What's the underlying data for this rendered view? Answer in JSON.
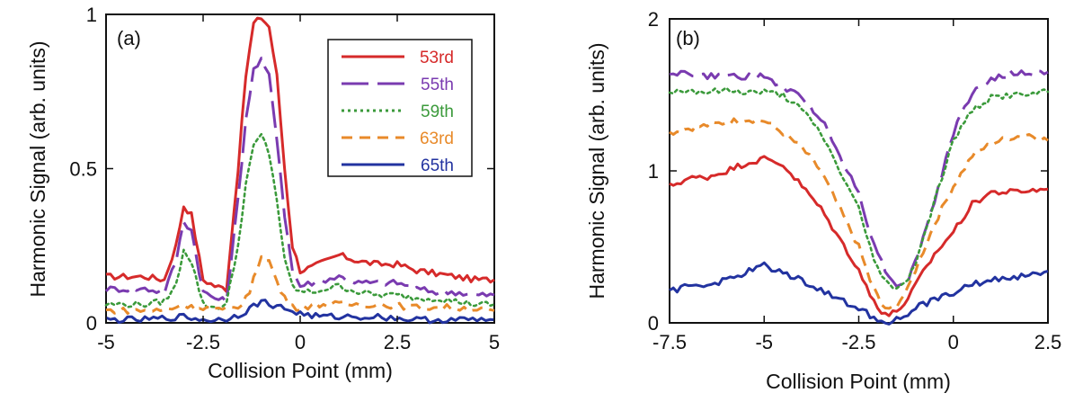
{
  "chart_data": [
    {
      "type": "line",
      "panel_label": "(a)",
      "xlabel": "Collision Point (mm)",
      "ylabel": "Harmonic Signal (arb. units)",
      "xlim": [
        -5,
        5
      ],
      "ylim": [
        0,
        1
      ],
      "xticks": [
        -5,
        -2.5,
        0,
        2.5,
        5
      ],
      "xtick_labels": [
        "-5",
        "-2.5",
        "0",
        "2.5",
        "5"
      ],
      "yticks": [
        0,
        0.5,
        1
      ],
      "ytick_labels": [
        "0",
        "0.5",
        "1"
      ],
      "grid": false,
      "legend": "top-right",
      "series": [
        {
          "name": "53rd",
          "color": "#d62a2a",
          "dash": "solid",
          "x": [
            -5,
            -4,
            -3.5,
            -3.2,
            -3.0,
            -2.8,
            -2.5,
            -2.2,
            -1.9,
            -1.6,
            -1.4,
            -1.2,
            -1.0,
            -0.8,
            -0.6,
            -0.4,
            -0.2,
            0,
            0.3,
            1,
            1.5,
            2,
            2.5,
            3,
            3.5,
            4,
            4.5,
            5
          ],
          "y": [
            0.15,
            0.15,
            0.14,
            0.25,
            0.38,
            0.35,
            0.14,
            0.12,
            0.11,
            0.5,
            0.8,
            0.97,
            0.99,
            0.96,
            0.8,
            0.5,
            0.25,
            0.17,
            0.18,
            0.22,
            0.2,
            0.19,
            0.19,
            0.17,
            0.16,
            0.15,
            0.14,
            0.14
          ]
        },
        {
          "name": "55th",
          "color": "#7a3bb0",
          "dash": "long-dash",
          "x": [
            -5,
            -4,
            -3.5,
            -3.2,
            -3.0,
            -2.8,
            -2.5,
            -2.2,
            -1.9,
            -1.6,
            -1.4,
            -1.2,
            -1.0,
            -0.8,
            -0.6,
            -0.4,
            -0.2,
            0,
            0.3,
            1,
            1.5,
            2,
            2.5,
            3,
            3.5,
            4,
            4.5,
            5
          ],
          "y": [
            0.11,
            0.11,
            0.1,
            0.2,
            0.33,
            0.3,
            0.1,
            0.08,
            0.07,
            0.4,
            0.66,
            0.82,
            0.85,
            0.8,
            0.6,
            0.35,
            0.17,
            0.12,
            0.13,
            0.15,
            0.13,
            0.13,
            0.13,
            0.11,
            0.1,
            0.1,
            0.09,
            0.09
          ]
        },
        {
          "name": "59th",
          "color": "#3b9a3b",
          "dash": "dotted",
          "x": [
            -5,
            -4,
            -3.5,
            -3.2,
            -3.0,
            -2.8,
            -2.5,
            -2.2,
            -1.9,
            -1.6,
            -1.4,
            -1.2,
            -1.0,
            -0.8,
            -0.6,
            -0.4,
            -0.2,
            0,
            0.3,
            1,
            1.5,
            2,
            2.5,
            3,
            3.5,
            4,
            4.5,
            5
          ],
          "y": [
            0.06,
            0.06,
            0.07,
            0.12,
            0.24,
            0.2,
            0.06,
            0.05,
            0.06,
            0.25,
            0.45,
            0.57,
            0.61,
            0.55,
            0.4,
            0.2,
            0.12,
            0.1,
            0.1,
            0.12,
            0.1,
            0.09,
            0.09,
            0.08,
            0.08,
            0.07,
            0.06,
            0.06
          ]
        },
        {
          "name": "63rd",
          "color": "#e88a2a",
          "dash": "dashed",
          "x": [
            -5,
            -4,
            -3.5,
            -3.0,
            -2.8,
            -2.5,
            -2.0,
            -1.6,
            -1.3,
            -1.0,
            -0.8,
            -0.5,
            -0.2,
            0,
            0.5,
            1,
            2,
            3,
            4,
            5
          ],
          "y": [
            0.04,
            0.04,
            0.04,
            0.06,
            0.05,
            0.05,
            0.04,
            0.05,
            0.1,
            0.22,
            0.2,
            0.1,
            0.05,
            0.05,
            0.06,
            0.06,
            0.06,
            0.05,
            0.05,
            0.04
          ]
        },
        {
          "name": "65th",
          "color": "#2233a0",
          "dash": "solid",
          "x": [
            -5,
            -4,
            -3,
            -2.5,
            -2,
            -1.5,
            -1,
            -0.5,
            0,
            0.5,
            1,
            2,
            3,
            4,
            5
          ],
          "y": [
            0.01,
            0.01,
            0.02,
            0.01,
            0.01,
            0.03,
            0.07,
            0.05,
            0.03,
            0.02,
            0.02,
            0.02,
            0.01,
            0.01,
            0.01
          ]
        }
      ]
    },
    {
      "type": "line",
      "panel_label": "(b)",
      "xlabel": "Collision Point (mm)",
      "ylabel": "Harmonic Signal (arb. units)",
      "xlim": [
        -7.5,
        2.5
      ],
      "ylim": [
        0,
        2
      ],
      "xticks": [
        -7.5,
        -5,
        -2.5,
        0,
        2.5
      ],
      "xtick_labels": [
        "-7.5",
        "-5",
        "-2.5",
        "0",
        "2.5"
      ],
      "yticks": [
        0,
        1,
        2
      ],
      "ytick_labels": [
        "0",
        "1",
        "2"
      ],
      "grid": false,
      "series": [
        {
          "name": "53rd",
          "color": "#d62a2a",
          "dash": "solid",
          "x": [
            -7.5,
            -7,
            -6.5,
            -6,
            -5.5,
            -5,
            -4.5,
            -4,
            -3.5,
            -3,
            -2.5,
            -2.2,
            -1.9,
            -1.7,
            -1.5,
            -1.2,
            -1,
            -0.5,
            0,
            0.5,
            1,
            1.5,
            2,
            2.5
          ],
          "y": [
            0.9,
            0.95,
            0.96,
            1.0,
            1.05,
            1.08,
            1.04,
            0.9,
            0.75,
            0.55,
            0.35,
            0.18,
            0.08,
            0.05,
            0.08,
            0.15,
            0.25,
            0.45,
            0.6,
            0.78,
            0.86,
            0.86,
            0.87,
            0.88
          ]
        },
        {
          "name": "55th",
          "color": "#7a3bb0",
          "dash": "long-dash",
          "x": [
            -7.5,
            -7,
            -6.5,
            -6,
            -5.5,
            -5,
            -4.5,
            -4,
            -3.5,
            -3,
            -2.5,
            -2.2,
            -1.9,
            -1.7,
            -1.5,
            -1.2,
            -1,
            -0.5,
            0,
            0.5,
            1,
            1.5,
            2,
            2.5
          ],
          "y": [
            1.65,
            1.64,
            1.62,
            1.63,
            1.62,
            1.62,
            1.55,
            1.48,
            1.35,
            1.1,
            0.85,
            0.6,
            0.4,
            0.3,
            0.25,
            0.28,
            0.4,
            0.8,
            1.25,
            1.52,
            1.6,
            1.64,
            1.64,
            1.65
          ]
        },
        {
          "name": "59th",
          "color": "#3b9a3b",
          "dash": "dotted",
          "x": [
            -7.5,
            -7,
            -6.5,
            -6,
            -5.5,
            -5,
            -4.5,
            -4,
            -3.5,
            -3,
            -2.5,
            -2.2,
            -1.9,
            -1.7,
            -1.5,
            -1.2,
            -1,
            -0.5,
            0,
            0.5,
            1,
            1.5,
            2,
            2.5
          ],
          "y": [
            1.52,
            1.53,
            1.52,
            1.53,
            1.52,
            1.52,
            1.5,
            1.4,
            1.25,
            1.0,
            0.75,
            0.5,
            0.3,
            0.25,
            0.24,
            0.28,
            0.4,
            0.8,
            1.2,
            1.4,
            1.48,
            1.5,
            1.5,
            1.52
          ]
        },
        {
          "name": "63rd",
          "color": "#e88a2a",
          "dash": "dashed",
          "x": [
            -7.5,
            -7,
            -6.5,
            -6,
            -5.5,
            -5,
            -4.5,
            -4,
            -3.5,
            -3,
            -2.5,
            -2.2,
            -1.9,
            -1.7,
            -1.5,
            -1.2,
            -1,
            -0.5,
            0,
            0.5,
            1,
            1.5,
            2,
            2.5
          ],
          "y": [
            1.25,
            1.28,
            1.3,
            1.32,
            1.34,
            1.33,
            1.25,
            1.15,
            1.0,
            0.75,
            0.5,
            0.28,
            0.12,
            0.08,
            0.12,
            0.22,
            0.35,
            0.65,
            0.9,
            1.1,
            1.18,
            1.22,
            1.24,
            1.2
          ]
        },
        {
          "name": "65th",
          "color": "#2233a0",
          "dash": "solid",
          "x": [
            -7.5,
            -7,
            -6.5,
            -6,
            -5.5,
            -5,
            -4.5,
            -4,
            -3.5,
            -3,
            -2.5,
            -2.2,
            -1.9,
            -1.7,
            -1.5,
            -1.2,
            -1,
            -0.5,
            0,
            0.5,
            1,
            1.5,
            2,
            2.5
          ],
          "y": [
            0.2,
            0.25,
            0.25,
            0.28,
            0.33,
            0.38,
            0.33,
            0.28,
            0.22,
            0.15,
            0.1,
            0.05,
            0.02,
            0.01,
            0.02,
            0.05,
            0.1,
            0.15,
            0.2,
            0.25,
            0.28,
            0.3,
            0.31,
            0.34
          ]
        }
      ]
    }
  ]
}
